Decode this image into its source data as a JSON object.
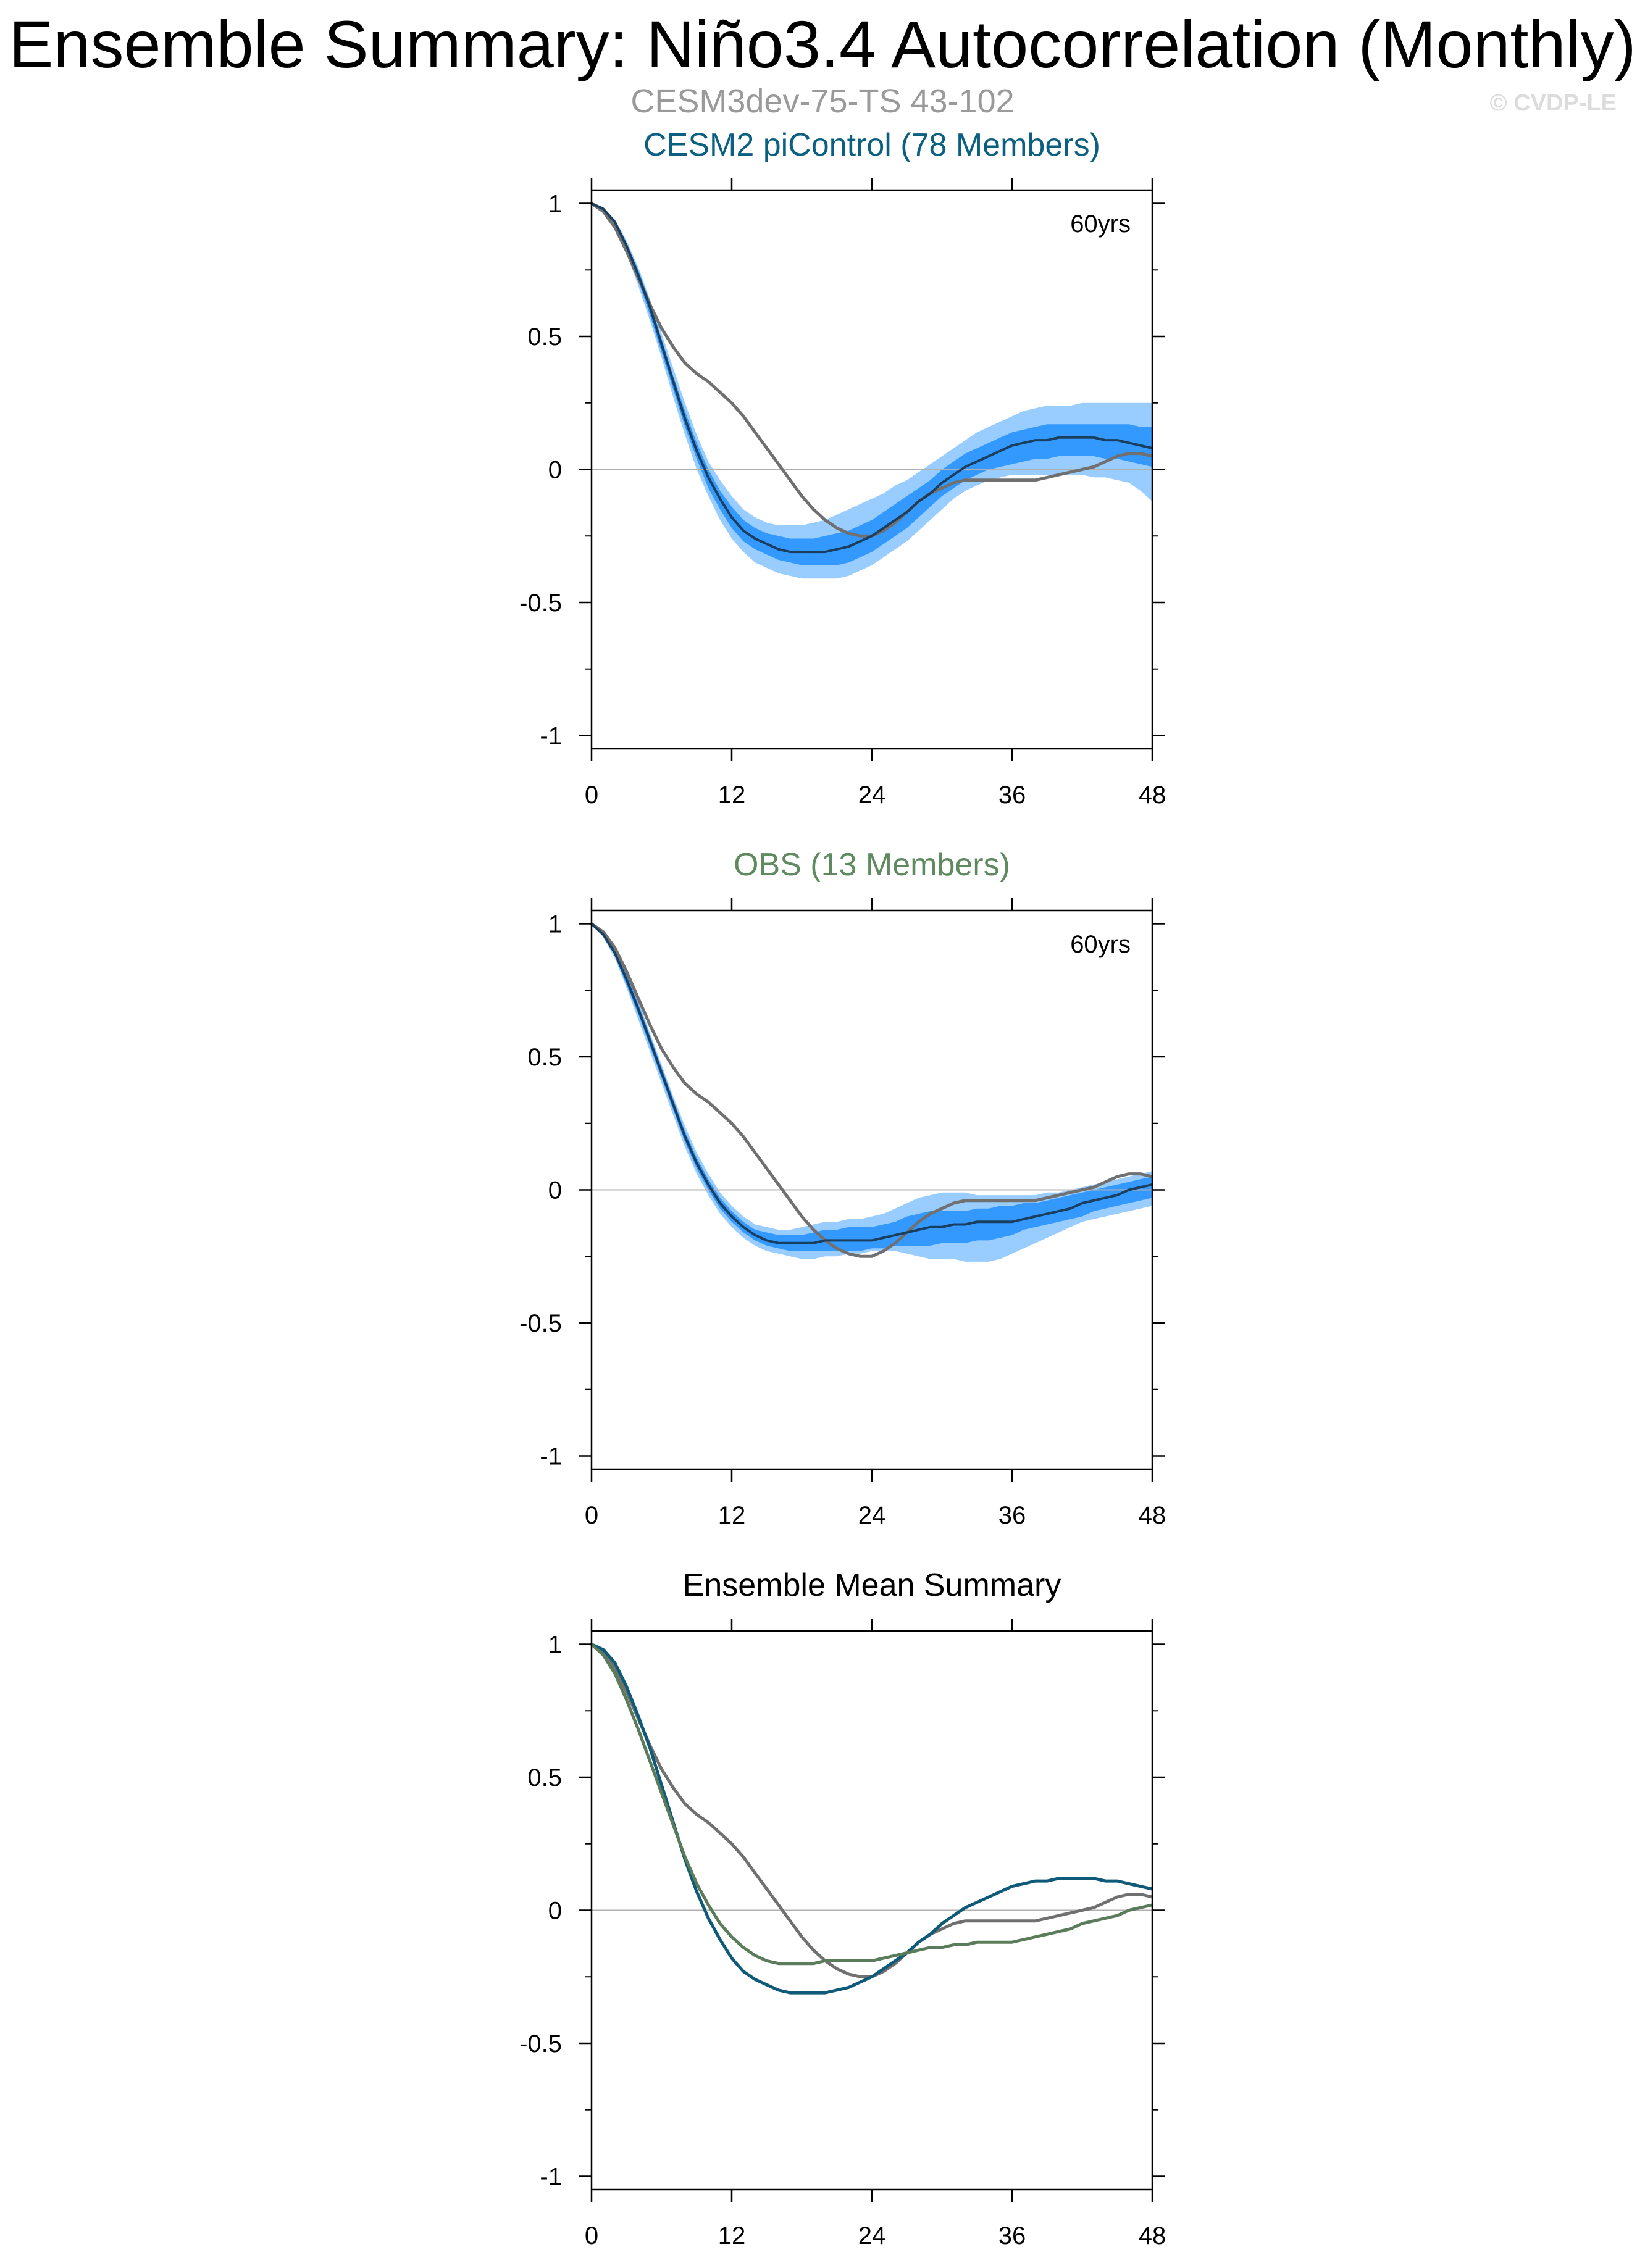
{
  "title": "Ensemble Summary: Niño3.4 Autocorrelation (Monthly)",
  "subtitle": "CESM3dev-75-TS 43-102",
  "credit": "© CVDP-LE",
  "colors": {
    "reference_line": "#707070",
    "cesm2_title": "#0b5f80",
    "cesm2_mean": "#0f5a78",
    "obs_title": "#5f8a5f",
    "obs_mean": "#5a7c5a",
    "band_outer": "#99ccff",
    "band_inner": "#3399ff",
    "ensemble_mean_in_panel": "#1a3f5e",
    "zero_line": "#b0b0b0",
    "panel3_title": "#000000"
  },
  "chart_data": [
    {
      "type": "area",
      "title": "CESM2 piControl (78 Members)",
      "annotation": "60yrs",
      "x": [
        0,
        1,
        2,
        3,
        4,
        5,
        6,
        7,
        8,
        9,
        10,
        11,
        12,
        13,
        14,
        15,
        16,
        17,
        18,
        19,
        20,
        21,
        22,
        23,
        24,
        25,
        26,
        27,
        28,
        29,
        30,
        31,
        32,
        33,
        34,
        35,
        36,
        37,
        38,
        39,
        40,
        41,
        42,
        43,
        44,
        45,
        46,
        47,
        48
      ],
      "xticks": [
        0,
        12,
        24,
        36,
        48
      ],
      "yticks": [
        1,
        0.5,
        0,
        -0.5,
        -1
      ],
      "xlim": [
        0,
        48
      ],
      "ylim": [
        -1.05,
        1.05
      ],
      "series": [
        {
          "values": [
            1.0,
            0.98,
            0.93,
            0.84,
            0.73,
            0.61,
            0.47,
            0.33,
            0.19,
            0.07,
            -0.03,
            -0.11,
            -0.18,
            -0.23,
            -0.26,
            -0.28,
            -0.3,
            -0.31,
            -0.31,
            -0.31,
            -0.31,
            -0.3,
            -0.29,
            -0.27,
            -0.25,
            -0.22,
            -0.19,
            -0.16,
            -0.12,
            -0.09,
            -0.05,
            -0.02,
            0.01,
            0.03,
            0.05,
            0.07,
            0.09,
            0.1,
            0.11,
            0.11,
            0.12,
            0.12,
            0.12,
            0.12,
            0.11,
            0.11,
            0.1,
            0.09,
            0.08
          ]
        }
      ],
      "band_outer": {
        "upper": [
          1.0,
          0.98,
          0.94,
          0.86,
          0.76,
          0.64,
          0.51,
          0.38,
          0.25,
          0.13,
          0.03,
          -0.04,
          -0.1,
          -0.15,
          -0.18,
          -0.2,
          -0.21,
          -0.21,
          -0.21,
          -0.2,
          -0.19,
          -0.17,
          -0.15,
          -0.13,
          -0.11,
          -0.09,
          -0.06,
          -0.04,
          -0.01,
          0.02,
          0.05,
          0.08,
          0.11,
          0.14,
          0.16,
          0.18,
          0.2,
          0.22,
          0.23,
          0.24,
          0.24,
          0.24,
          0.25,
          0.25,
          0.25,
          0.25,
          0.25,
          0.25,
          0.25
        ],
        "lower": [
          1.0,
          0.98,
          0.91,
          0.81,
          0.69,
          0.56,
          0.42,
          0.27,
          0.13,
          0.0,
          -0.1,
          -0.19,
          -0.26,
          -0.31,
          -0.35,
          -0.37,
          -0.39,
          -0.4,
          -0.41,
          -0.41,
          -0.41,
          -0.41,
          -0.4,
          -0.38,
          -0.36,
          -0.33,
          -0.3,
          -0.27,
          -0.23,
          -0.19,
          -0.15,
          -0.11,
          -0.08,
          -0.06,
          -0.04,
          -0.03,
          -0.02,
          -0.02,
          -0.02,
          -0.02,
          -0.02,
          -0.02,
          -0.02,
          -0.03,
          -0.03,
          -0.04,
          -0.05,
          -0.08,
          -0.12
        ]
      },
      "band_inner": {
        "upper": [
          1.0,
          0.98,
          0.93,
          0.85,
          0.75,
          0.63,
          0.49,
          0.35,
          0.22,
          0.1,
          0.0,
          -0.08,
          -0.14,
          -0.19,
          -0.22,
          -0.24,
          -0.25,
          -0.26,
          -0.26,
          -0.26,
          -0.25,
          -0.24,
          -0.23,
          -0.21,
          -0.19,
          -0.16,
          -0.13,
          -0.1,
          -0.07,
          -0.04,
          0.0,
          0.03,
          0.06,
          0.08,
          0.1,
          0.12,
          0.14,
          0.15,
          0.16,
          0.17,
          0.17,
          0.17,
          0.17,
          0.17,
          0.17,
          0.17,
          0.17,
          0.16,
          0.16
        ],
        "lower": [
          1.0,
          0.98,
          0.92,
          0.83,
          0.71,
          0.58,
          0.44,
          0.3,
          0.16,
          0.04,
          -0.07,
          -0.15,
          -0.22,
          -0.27,
          -0.3,
          -0.32,
          -0.34,
          -0.35,
          -0.36,
          -0.36,
          -0.36,
          -0.36,
          -0.35,
          -0.33,
          -0.31,
          -0.28,
          -0.25,
          -0.22,
          -0.18,
          -0.14,
          -0.1,
          -0.07,
          -0.04,
          -0.02,
          0.0,
          0.01,
          0.02,
          0.03,
          0.04,
          0.04,
          0.05,
          0.05,
          0.05,
          0.05,
          0.04,
          0.04,
          0.03,
          0.02,
          0.01
        ]
      }
    },
    {
      "type": "area",
      "title": "OBS (13 Members)",
      "annotation": "60yrs",
      "x": [
        0,
        1,
        2,
        3,
        4,
        5,
        6,
        7,
        8,
        9,
        10,
        11,
        12,
        13,
        14,
        15,
        16,
        17,
        18,
        19,
        20,
        21,
        22,
        23,
        24,
        25,
        26,
        27,
        28,
        29,
        30,
        31,
        32,
        33,
        34,
        35,
        36,
        37,
        38,
        39,
        40,
        41,
        42,
        43,
        44,
        45,
        46,
        47,
        48
      ],
      "xticks": [
        0,
        12,
        24,
        36,
        48
      ],
      "yticks": [
        1,
        0.5,
        0,
        -0.5,
        -1
      ],
      "xlim": [
        0,
        48
      ],
      "ylim": [
        -1.05,
        1.05
      ],
      "series": [
        {
          "values": [
            1.0,
            0.96,
            0.89,
            0.79,
            0.68,
            0.56,
            0.44,
            0.32,
            0.2,
            0.1,
            0.02,
            -0.05,
            -0.1,
            -0.14,
            -0.17,
            -0.19,
            -0.2,
            -0.2,
            -0.2,
            -0.2,
            -0.19,
            -0.19,
            -0.19,
            -0.19,
            -0.19,
            -0.18,
            -0.17,
            -0.16,
            -0.15,
            -0.14,
            -0.14,
            -0.13,
            -0.13,
            -0.12,
            -0.12,
            -0.12,
            -0.12,
            -0.11,
            -0.1,
            -0.09,
            -0.08,
            -0.07,
            -0.05,
            -0.04,
            -0.03,
            -0.02,
            0.0,
            0.01,
            0.02
          ]
        }
      ],
      "band_outer": {
        "upper": [
          1.0,
          0.97,
          0.91,
          0.82,
          0.71,
          0.59,
          0.47,
          0.35,
          0.24,
          0.14,
          0.06,
          -0.01,
          -0.06,
          -0.1,
          -0.13,
          -0.14,
          -0.15,
          -0.15,
          -0.14,
          -0.13,
          -0.12,
          -0.12,
          -0.11,
          -0.11,
          -0.1,
          -0.09,
          -0.07,
          -0.05,
          -0.03,
          -0.02,
          -0.01,
          -0.01,
          -0.01,
          -0.02,
          -0.02,
          -0.02,
          -0.02,
          -0.02,
          -0.02,
          -0.01,
          -0.01,
          0.0,
          0.01,
          0.02,
          0.03,
          0.04,
          0.05,
          0.06,
          0.07
        ],
        "lower": [
          1.0,
          0.95,
          0.87,
          0.76,
          0.64,
          0.52,
          0.4,
          0.28,
          0.16,
          0.06,
          -0.02,
          -0.09,
          -0.14,
          -0.18,
          -0.21,
          -0.23,
          -0.24,
          -0.25,
          -0.26,
          -0.26,
          -0.25,
          -0.25,
          -0.24,
          -0.24,
          -0.23,
          -0.23,
          -0.23,
          -0.24,
          -0.25,
          -0.26,
          -0.26,
          -0.26,
          -0.27,
          -0.27,
          -0.27,
          -0.26,
          -0.24,
          -0.22,
          -0.2,
          -0.18,
          -0.16,
          -0.14,
          -0.12,
          -0.11,
          -0.1,
          -0.09,
          -0.08,
          -0.07,
          -0.06
        ]
      },
      "band_inner": {
        "upper": [
          1.0,
          0.97,
          0.9,
          0.81,
          0.7,
          0.58,
          0.46,
          0.34,
          0.22,
          0.12,
          0.04,
          -0.03,
          -0.08,
          -0.12,
          -0.15,
          -0.16,
          -0.17,
          -0.17,
          -0.17,
          -0.16,
          -0.15,
          -0.15,
          -0.14,
          -0.14,
          -0.14,
          -0.13,
          -0.12,
          -0.1,
          -0.09,
          -0.08,
          -0.08,
          -0.08,
          -0.08,
          -0.07,
          -0.07,
          -0.06,
          -0.06,
          -0.05,
          -0.05,
          -0.04,
          -0.03,
          -0.02,
          -0.01,
          0.0,
          0.01,
          0.02,
          0.03,
          0.04,
          0.05
        ],
        "lower": [
          1.0,
          0.96,
          0.88,
          0.77,
          0.66,
          0.54,
          0.42,
          0.3,
          0.18,
          0.08,
          0.0,
          -0.07,
          -0.12,
          -0.16,
          -0.19,
          -0.21,
          -0.22,
          -0.23,
          -0.23,
          -0.23,
          -0.23,
          -0.23,
          -0.23,
          -0.23,
          -0.22,
          -0.22,
          -0.21,
          -0.21,
          -0.21,
          -0.21,
          -0.2,
          -0.2,
          -0.2,
          -0.19,
          -0.19,
          -0.18,
          -0.17,
          -0.15,
          -0.14,
          -0.13,
          -0.12,
          -0.11,
          -0.1,
          -0.08,
          -0.07,
          -0.06,
          -0.05,
          -0.04,
          -0.03
        ]
      }
    },
    {
      "type": "line",
      "title": "Ensemble Mean Summary",
      "x": [
        0,
        1,
        2,
        3,
        4,
        5,
        6,
        7,
        8,
        9,
        10,
        11,
        12,
        13,
        14,
        15,
        16,
        17,
        18,
        19,
        20,
        21,
        22,
        23,
        24,
        25,
        26,
        27,
        28,
        29,
        30,
        31,
        32,
        33,
        34,
        35,
        36,
        37,
        38,
        39,
        40,
        41,
        42,
        43,
        44,
        45,
        46,
        47,
        48
      ],
      "xticks": [
        0,
        12,
        24,
        36,
        48
      ],
      "yticks": [
        1,
        0.5,
        0,
        -0.5,
        -1
      ],
      "xlim": [
        0,
        48
      ],
      "ylim": [
        -1.05,
        1.05
      ],
      "series": [
        {
          "values": [
            1.0,
            0.98,
            0.93,
            0.84,
            0.73,
            0.61,
            0.47,
            0.33,
            0.19,
            0.07,
            -0.03,
            -0.11,
            -0.18,
            -0.23,
            -0.26,
            -0.28,
            -0.3,
            -0.31,
            -0.31,
            -0.31,
            -0.31,
            -0.3,
            -0.29,
            -0.27,
            -0.25,
            -0.22,
            -0.19,
            -0.16,
            -0.12,
            -0.09,
            -0.05,
            -0.02,
            0.01,
            0.03,
            0.05,
            0.07,
            0.09,
            0.1,
            0.11,
            0.11,
            0.12,
            0.12,
            0.12,
            0.12,
            0.11,
            0.11,
            0.1,
            0.09,
            0.08
          ]
        },
        {
          "values": [
            1.0,
            0.96,
            0.89,
            0.79,
            0.68,
            0.56,
            0.44,
            0.32,
            0.2,
            0.1,
            0.02,
            -0.05,
            -0.1,
            -0.14,
            -0.17,
            -0.19,
            -0.2,
            -0.2,
            -0.2,
            -0.2,
            -0.19,
            -0.19,
            -0.19,
            -0.19,
            -0.19,
            -0.18,
            -0.17,
            -0.16,
            -0.15,
            -0.14,
            -0.14,
            -0.13,
            -0.13,
            -0.12,
            -0.12,
            -0.12,
            -0.12,
            -0.11,
            -0.1,
            -0.09,
            -0.08,
            -0.07,
            -0.05,
            -0.04,
            -0.03,
            -0.02,
            0.0,
            0.01,
            0.02
          ]
        }
      ]
    }
  ],
  "reference_series": {
    "x": [
      0,
      1,
      2,
      3,
      4,
      5,
      6,
      7,
      8,
      9,
      10,
      11,
      12,
      13,
      14,
      15,
      16,
      17,
      18,
      19,
      20,
      21,
      22,
      23,
      24,
      25,
      26,
      27,
      28,
      29,
      30,
      31,
      32,
      33,
      34,
      35,
      36,
      37,
      38,
      39,
      40,
      41,
      42,
      43,
      44,
      45,
      46,
      47,
      48
    ],
    "values": [
      1.0,
      0.97,
      0.91,
      0.82,
      0.72,
      0.62,
      0.53,
      0.46,
      0.4,
      0.36,
      0.33,
      0.29,
      0.25,
      0.2,
      0.14,
      0.08,
      0.02,
      -0.04,
      -0.1,
      -0.15,
      -0.19,
      -0.22,
      -0.24,
      -0.25,
      -0.25,
      -0.23,
      -0.2,
      -0.16,
      -0.12,
      -0.09,
      -0.07,
      -0.05,
      -0.04,
      -0.04,
      -0.04,
      -0.04,
      -0.04,
      -0.04,
      -0.04,
      -0.03,
      -0.02,
      -0.01,
      0.0,
      0.01,
      0.03,
      0.05,
      0.06,
      0.06,
      0.05
    ]
  }
}
